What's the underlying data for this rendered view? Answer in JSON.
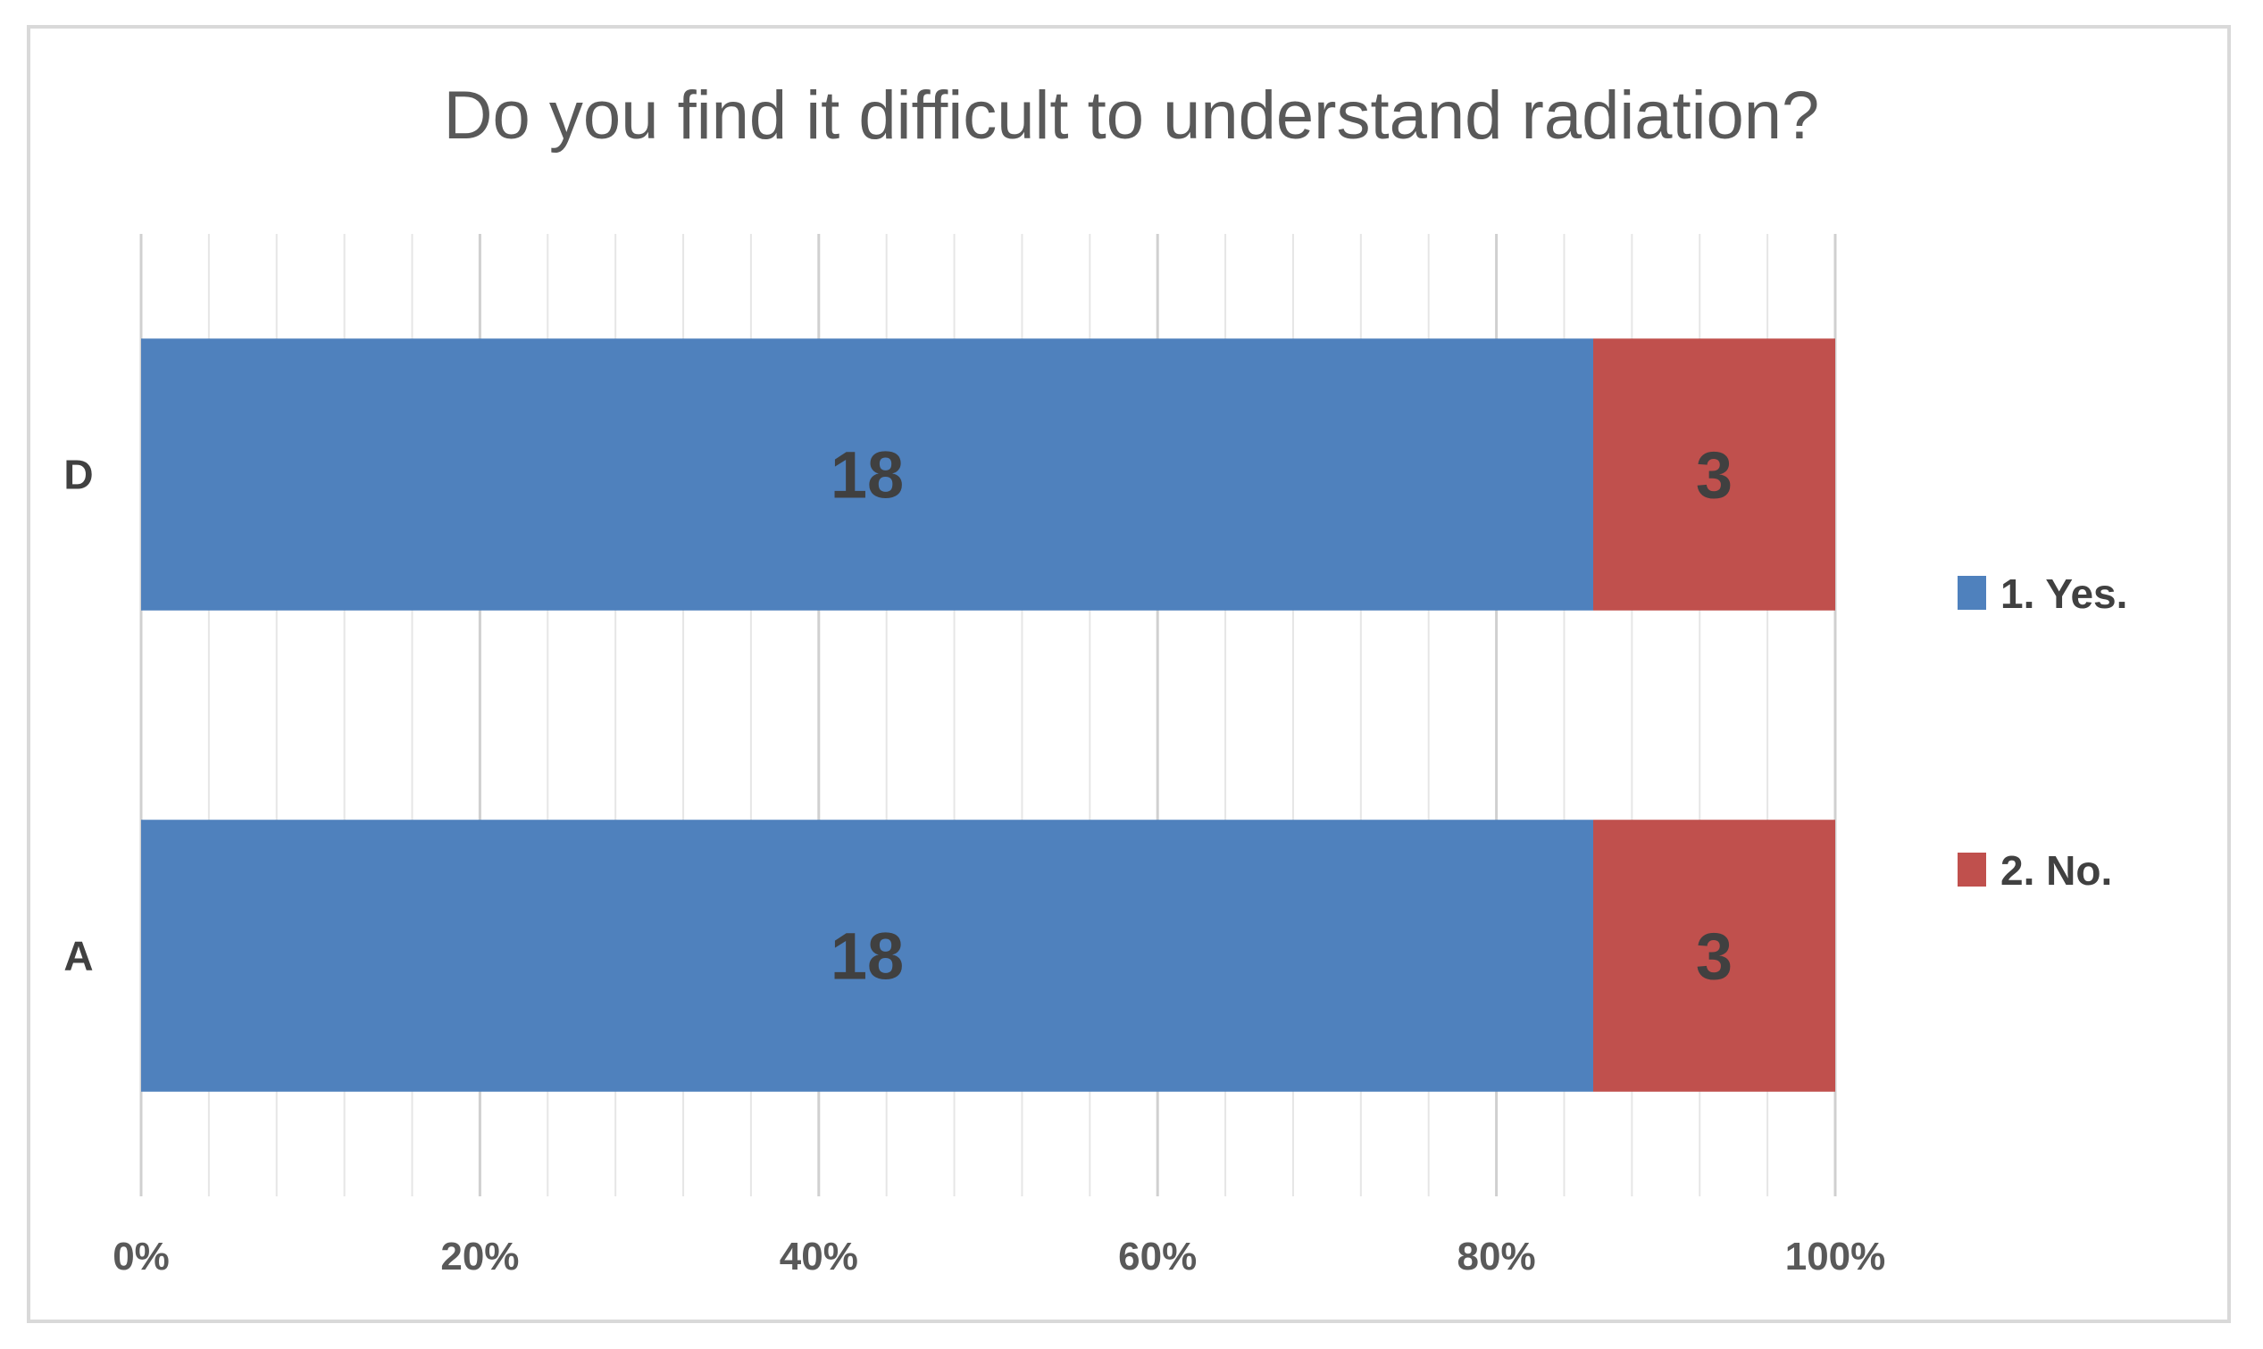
{
  "chart_data": {
    "type": "bar",
    "orientation": "horizontal",
    "stacked": "percent",
    "title": "Do you find it difficult to understand radiation?",
    "categories": [
      "D",
      "A"
    ],
    "series": [
      {
        "name": "1. Yes.",
        "values": [
          18,
          18
        ],
        "color": "#4f81bd"
      },
      {
        "name": "2. No.",
        "values": [
          3,
          3
        ],
        "color": "#c0504d"
      }
    ],
    "xlim": [
      0,
      100
    ],
    "xticks": [
      "0%",
      "20%",
      "40%",
      "60%",
      "80%",
      "100%"
    ],
    "grid": true,
    "legend": "right"
  }
}
